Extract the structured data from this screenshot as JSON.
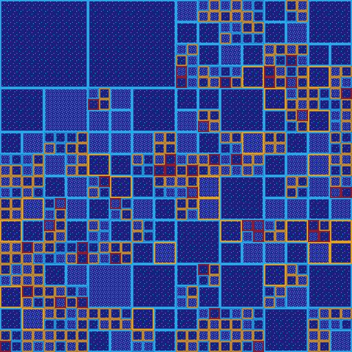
{
  "image": {
    "kind": "quadtree block partition visualization",
    "colors": {
      "background": "#1b1f7e",
      "speckle": "#2fa7e8",
      "border_cyan": "#2aa6e6",
      "border_gold": "#e0a020",
      "border_red": "#a01c1c"
    },
    "legend": []
  }
}
